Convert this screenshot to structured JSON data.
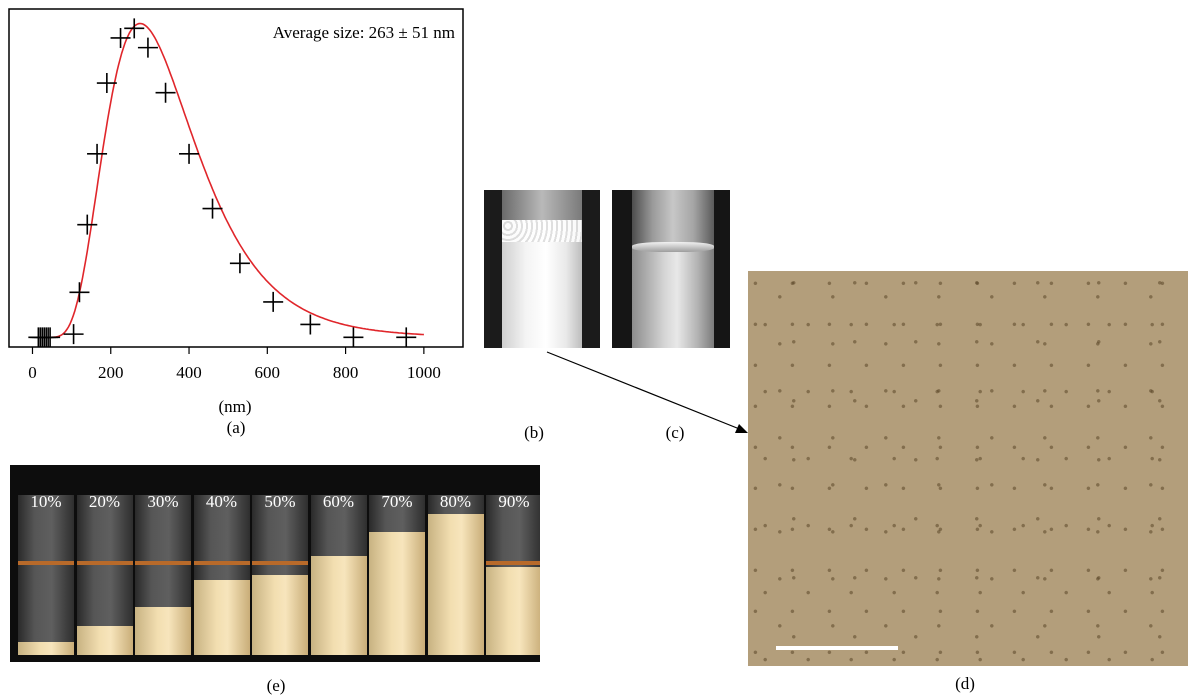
{
  "figure": {
    "captions": {
      "a": "(a)",
      "b": "(b)",
      "c": "(c)",
      "d": "(d)",
      "e": "(e)"
    },
    "vial_labels": [
      "10%",
      "20%",
      "30%",
      "40%",
      "50%",
      "60%",
      "70%",
      "80%",
      "90%"
    ],
    "vial_fill_fractions": [
      0.08,
      0.18,
      0.3,
      0.47,
      0.5,
      0.62,
      0.77,
      0.88,
      0.55
    ]
  },
  "chart_data": {
    "type": "scatter",
    "annotation": "Average size: 263 ± 51 nm",
    "xlabel": "(nm)",
    "ylabel": "",
    "xlim": [
      -60,
      1100
    ],
    "ylim": [
      0,
      1.05
    ],
    "x_ticks": [
      0,
      200,
      400,
      600,
      800,
      1000
    ],
    "y_ticks_shown": false,
    "series": [
      {
        "name": "",
        "marker": "+",
        "color": "#000000",
        "points": [
          [
            15,
            0.03
          ],
          [
            20,
            0.03
          ],
          [
            25,
            0.03
          ],
          [
            30,
            0.03
          ],
          [
            35,
            0.03
          ],
          [
            40,
            0.03
          ],
          [
            45,
            0.03
          ],
          [
            105,
            0.04
          ],
          [
            120,
            0.17
          ],
          [
            140,
            0.38
          ],
          [
            165,
            0.6
          ],
          [
            190,
            0.82
          ],
          [
            225,
            0.96
          ],
          [
            260,
            0.99
          ],
          [
            295,
            0.93
          ],
          [
            340,
            0.79
          ],
          [
            400,
            0.6
          ],
          [
            460,
            0.43
          ],
          [
            530,
            0.26
          ],
          [
            615,
            0.14
          ],
          [
            710,
            0.07
          ],
          [
            820,
            0.03
          ],
          [
            955,
            0.03
          ]
        ]
      },
      {
        "name": "",
        "type": "line",
        "color": "#e0262b",
        "fit": "log-normal"
      }
    ]
  }
}
